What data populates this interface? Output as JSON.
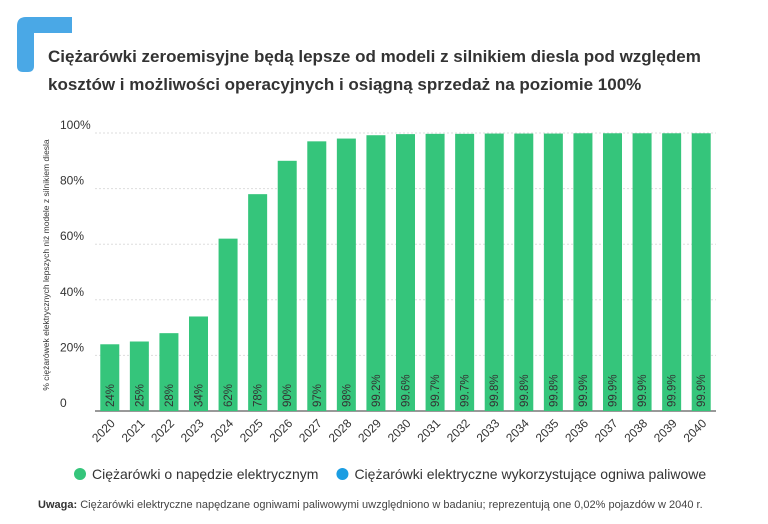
{
  "chart_data": {
    "type": "bar",
    "title_lines": [
      "Ciężarówki zeroemisyjne będą lepsze od modeli z silnikiem diesla pod względem",
      "kosztów i możliwości operacyjnych i osiągną sprzedaż na poziomie 100%"
    ],
    "ylabel": "% ciężarówek elektrycznych lepszych niż modele z silnikiem diesla",
    "categories": [
      "2020",
      "2021",
      "2022",
      "2023",
      "2024",
      "2025",
      "2026",
      "2027",
      "2028",
      "2029",
      "2030",
      "2031",
      "2032",
      "2033",
      "2034",
      "2035",
      "2036",
      "2037",
      "2038",
      "2039",
      "2040"
    ],
    "series": [
      {
        "name": "Ciężarówki o napędzie elektrycznym",
        "color": "#35c57b",
        "values": [
          24,
          25,
          28,
          34,
          62,
          78,
          90,
          97,
          98,
          99.2,
          99.6,
          99.7,
          99.7,
          99.8,
          99.8,
          99.8,
          99.9,
          99.9,
          99.9,
          99.9,
          99.9
        ],
        "value_labels": [
          "24%",
          "25%",
          "28%",
          "34%",
          "62%",
          "78%",
          "90%",
          "97%",
          "98%",
          "99.2%",
          "99.6%",
          "99.7%",
          "99.7%",
          "99.8%",
          "99.8%",
          "99.8%",
          "99.9%",
          "99.9%",
          "99.9%",
          "99.9%",
          "99.9%"
        ]
      },
      {
        "name": "Ciężarówki elektryczne wykorzystujące ogniwa paliwowe",
        "color": "#1b9de2"
      }
    ],
    "ylim": [
      0,
      100
    ],
    "yticks": [
      0,
      {
        "value": 20,
        "label": "20%"
      },
      {
        "value": 40,
        "label": "40%"
      },
      {
        "value": 60,
        "label": "60%"
      },
      {
        "value": 80,
        "label": "80%"
      },
      {
        "value": 100,
        "label": "100%"
      }
    ],
    "grid": true,
    "note_label": "Uwaga:",
    "note": "Ciężarówki elektryczne napędzane ogniwami paliwowymi uwzględniono w badaniu; reprezentują one 0,02% pojazdów w 2040 r."
  }
}
